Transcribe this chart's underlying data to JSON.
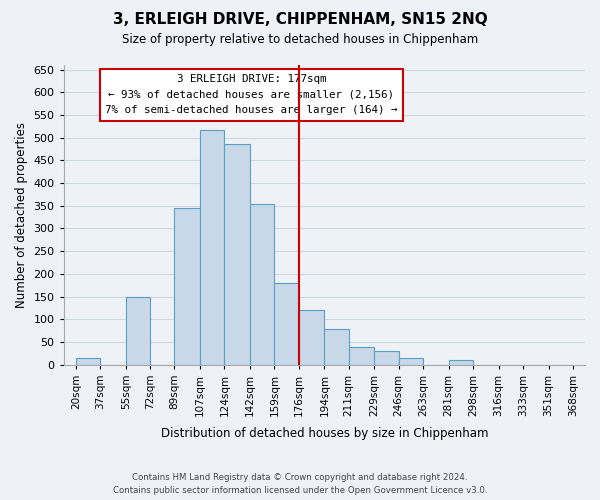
{
  "title": "3, ERLEIGH DRIVE, CHIPPENHAM, SN15 2NQ",
  "subtitle": "Size of property relative to detached houses in Chippenham",
  "xlabel": "Distribution of detached houses by size in Chippenham",
  "ylabel": "Number of detached properties",
  "bar_color": "#c8d8e8",
  "bar_edge_color": "#5a9fc8",
  "grid_color": "#d0d8e0",
  "vline_color": "#cc0000",
  "vline_x": 176,
  "bins": [
    20,
    37,
    55,
    72,
    89,
    107,
    124,
    142,
    159,
    176,
    194,
    211,
    229,
    246,
    263,
    281,
    298,
    316,
    333,
    351,
    368
  ],
  "bin_labels": [
    "20sqm",
    "37sqm",
    "55sqm",
    "72sqm",
    "89sqm",
    "107sqm",
    "124sqm",
    "142sqm",
    "159sqm",
    "176sqm",
    "194sqm",
    "211sqm",
    "229sqm",
    "246sqm",
    "263sqm",
    "281sqm",
    "298sqm",
    "316sqm",
    "333sqm",
    "351sqm",
    "368sqm"
  ],
  "counts": [
    14,
    0,
    150,
    0,
    345,
    517,
    485,
    355,
    180,
    120,
    78,
    40,
    30,
    14,
    0,
    10,
    0,
    0,
    0,
    0
  ],
  "ylim": [
    0,
    660
  ],
  "yticks": [
    0,
    50,
    100,
    150,
    200,
    250,
    300,
    350,
    400,
    450,
    500,
    550,
    600,
    650
  ],
  "annotation_title": "3 ERLEIGH DRIVE: 177sqm",
  "annotation_line1": "← 93% of detached houses are smaller (2,156)",
  "annotation_line2": "7% of semi-detached houses are larger (164) →",
  "annotation_box_color": "#ffffff",
  "annotation_box_edge": "#cc0000",
  "footnote1": "Contains HM Land Registry data © Crown copyright and database right 2024.",
  "footnote2": "Contains public sector information licensed under the Open Government Licence v3.0.",
  "bg_color": "#eef2f7"
}
